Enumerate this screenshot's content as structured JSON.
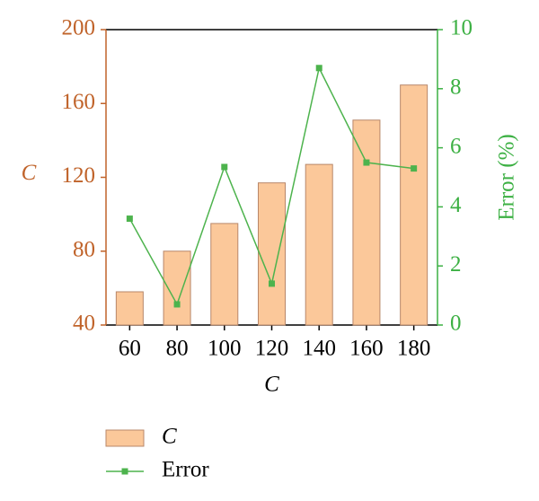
{
  "chart_data": {
    "type": "combo",
    "x_label": "C",
    "y_label": "C",
    "y2_label": "Error (%)",
    "categories": [
      "60",
      "80",
      "100",
      "120",
      "140",
      "160",
      "180"
    ],
    "series": [
      {
        "name": "C",
        "type": "bar",
        "color": "#fbc89a",
        "edge_color": "#b8876a",
        "values": [
          58,
          80,
          95,
          117,
          127,
          151,
          170
        ]
      },
      {
        "name": "Error",
        "type": "line",
        "axis": "y2",
        "color": "#4db34d",
        "values": [
          3.6,
          0.7,
          5.35,
          1.4,
          8.7,
          5.5,
          5.3
        ]
      }
    ],
    "ylim": [
      40,
      200
    ],
    "yticks": [
      40,
      80,
      120,
      160,
      200
    ],
    "y_color": "#c0632a",
    "y2lim": [
      0,
      10
    ],
    "y2ticks": [
      0,
      2,
      4,
      6,
      8,
      10
    ],
    "y2_color": "#3cb043"
  }
}
